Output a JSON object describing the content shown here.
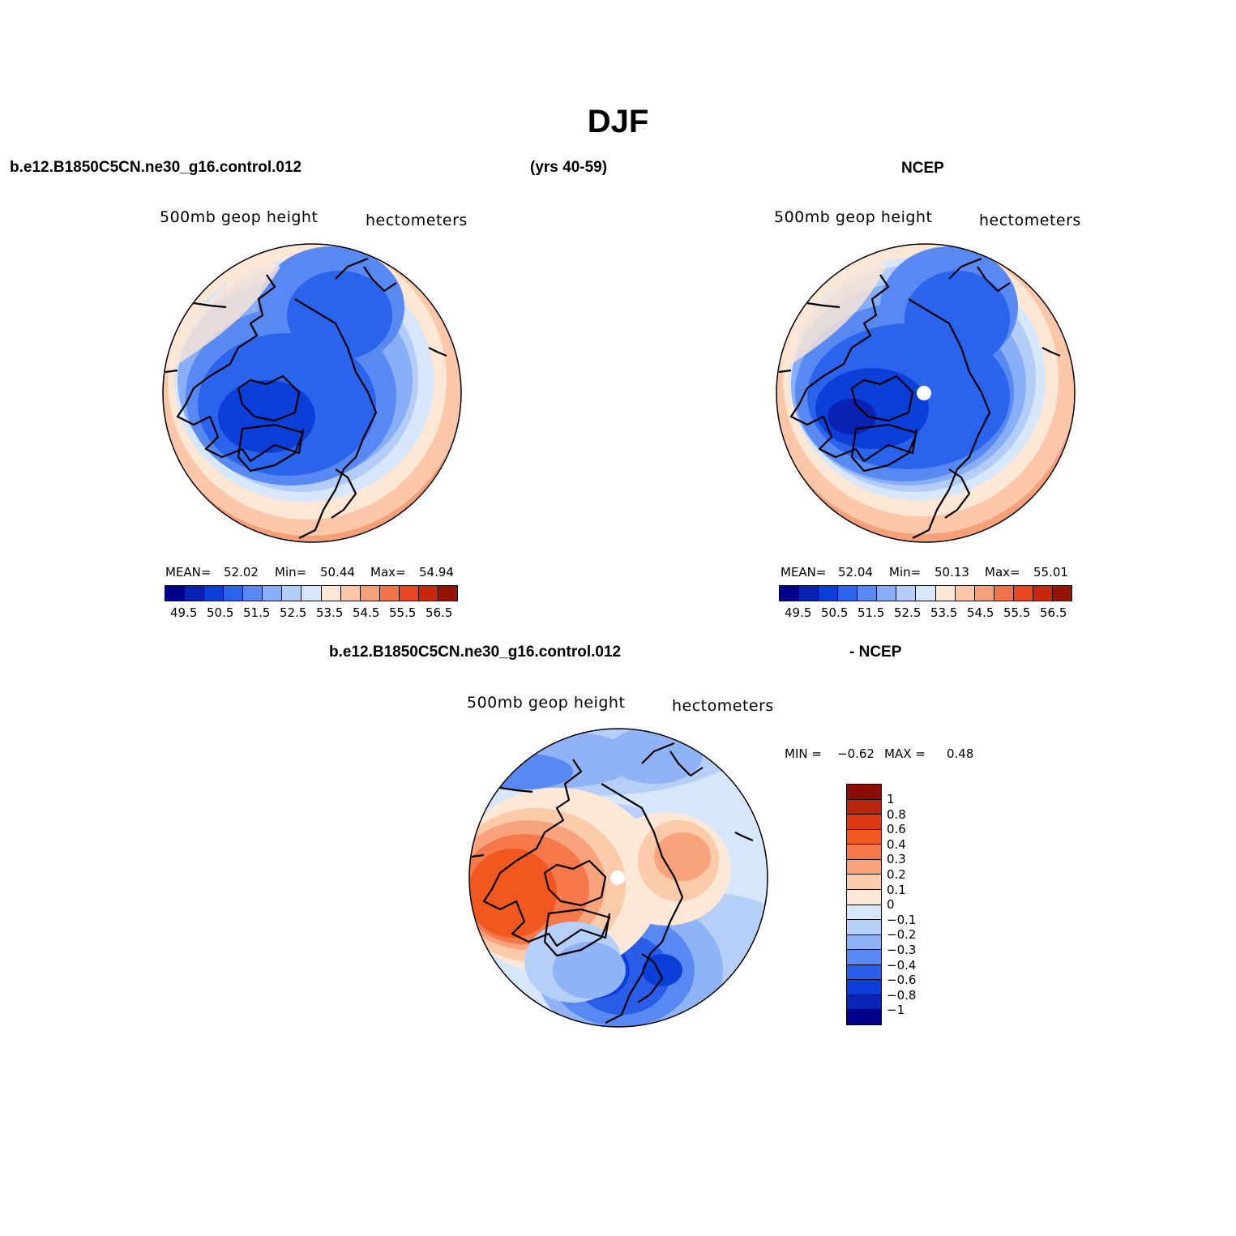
{
  "figure": {
    "title": "DJF",
    "case_name": "b.e12.B1850C5CN.ne30_g16.control.012",
    "years": "(yrs 40-59)",
    "obs_name": "NCEP",
    "diff_case_name": "b.e12.B1850C5CN.ne30_g16.control.012",
    "diff_obs_name": "- NCEP"
  },
  "panels": {
    "model": {
      "variable": "500mb geop height",
      "units": "hectometers",
      "mean_label": "MEAN=",
      "mean": "52.02",
      "min_label": "Min=",
      "min": "50.44",
      "max_label": "Max=",
      "max": "54.94"
    },
    "obs": {
      "variable": "500mb geop height",
      "units": "hectometers",
      "mean_label": "MEAN=",
      "mean": "52.04",
      "min_label": "Min=",
      "min": "50.13",
      "max_label": "Max=",
      "max": "55.01"
    },
    "diff": {
      "variable": "500mb geop height",
      "units": "hectometers",
      "min_label": "MIN =",
      "min": "−0.62",
      "max_label": "MAX =",
      "max": "0.48"
    }
  },
  "colorbars": {
    "abs": {
      "colors": [
        "#00008a",
        "#0a22b3",
        "#0c3fd8",
        "#2a63ec",
        "#5888f2",
        "#87aef6",
        "#b4ccf8",
        "#d6e6fb",
        "#fce6d4",
        "#fbc7a8",
        "#f6a07a",
        "#f17349",
        "#e84722",
        "#c9270d",
        "#961305"
      ],
      "ticks": [
        "49.5",
        "50.5",
        "51.5",
        "52.5",
        "53.5",
        "54.5",
        "55.5",
        "56.5"
      ]
    },
    "diff": {
      "colors": [
        "#8a0d06",
        "#b8240e",
        "#dc3a10",
        "#f0581f",
        "#f5784a",
        "#f8a37c",
        "#fbcaa8",
        "#fde8d7",
        "#d6e6fb",
        "#b6cff9",
        "#8fb3f6",
        "#5888f2",
        "#2a5ee8",
        "#0c3fd8",
        "#0a25b5",
        "#00008a"
      ],
      "ticks": [
        "1",
        "0.8",
        "0.6",
        "0.4",
        "0.3",
        "0.2",
        "0.1",
        "0",
        "−0.1",
        "−0.2",
        "−0.3",
        "−0.4",
        "−0.6",
        "−0.8",
        "−1"
      ]
    }
  }
}
